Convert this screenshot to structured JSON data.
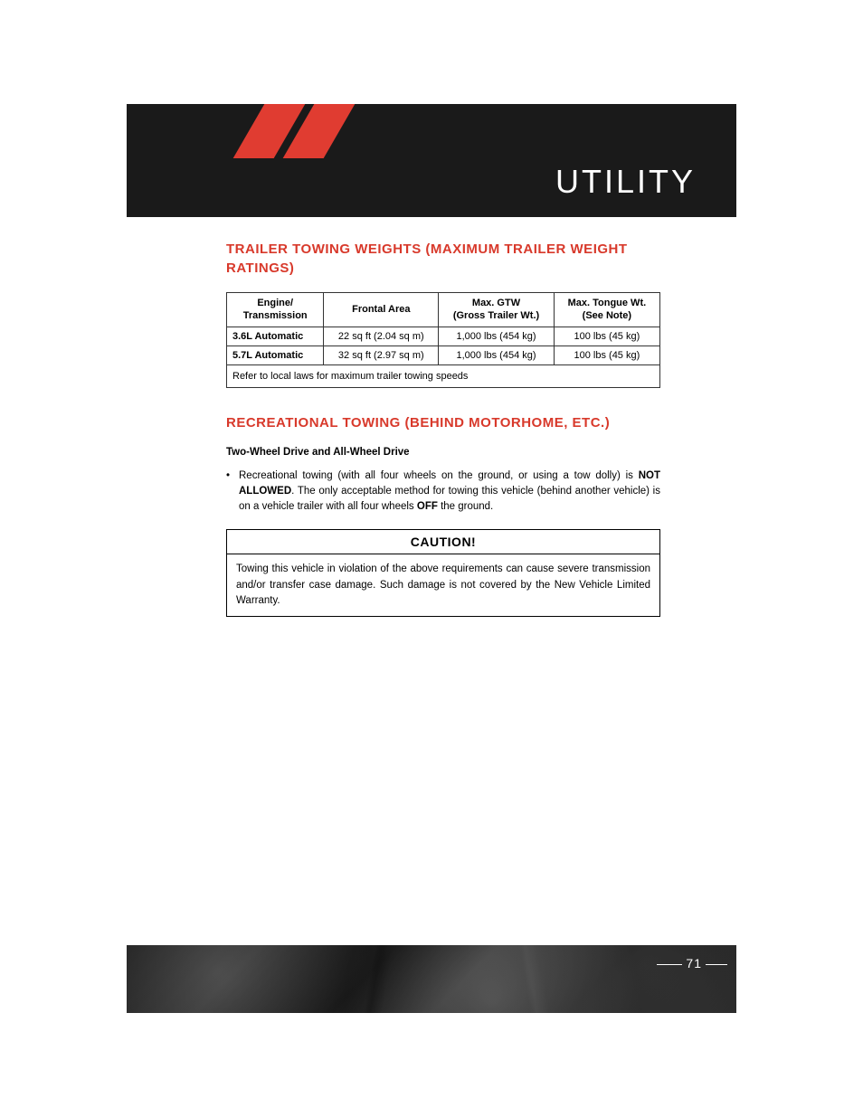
{
  "header": {
    "title": "UTILITY",
    "band_color": "#1a1a1a",
    "accent_color": "#e03c31",
    "title_color": "#ffffff"
  },
  "section1": {
    "heading": "TRAILER TOWING WEIGHTS (MAXIMUM TRAILER WEIGHT RATINGS)",
    "heading_color": "#d8392b",
    "table": {
      "columns": [
        "Engine/\nTransmission",
        "Frontal Area",
        "Max. GTW\n(Gross Trailer Wt.)",
        "Max. Tongue Wt.\n(See Note)"
      ],
      "rows": [
        [
          "3.6L Automatic",
          "22 sq ft (2.04 sq m)",
          "1,000 lbs (454 kg)",
          "100 lbs (45 kg)"
        ],
        [
          "5.7L Automatic",
          "32 sq ft (2.97 sq m)",
          "1,000 lbs (454 kg)",
          "100 lbs (45 kg)"
        ]
      ],
      "footer": "Refer to local laws for maximum trailer towing speeds"
    }
  },
  "section2": {
    "heading": "RECREATIONAL TOWING (BEHIND MOTORHOME, ETC.)",
    "subheading": "Two-Wheel Drive and All-Wheel Drive",
    "bullet_pre": "Recreational towing (with all four wheels on the ground, or using a tow dolly) is ",
    "bullet_bold1": "NOT ALLOWED",
    "bullet_mid": ". The only acceptable method for towing this vehicle (behind another vehicle) is on a vehicle trailer with all four wheels ",
    "bullet_bold2": "OFF",
    "bullet_post": " the ground."
  },
  "caution": {
    "title": "CAUTION!",
    "body": "Towing this vehicle in violation of the above requirements can cause severe transmission and/or transfer case damage. Such damage is not covered by the New Vehicle Limited Warranty."
  },
  "footer": {
    "page_number": "71"
  }
}
